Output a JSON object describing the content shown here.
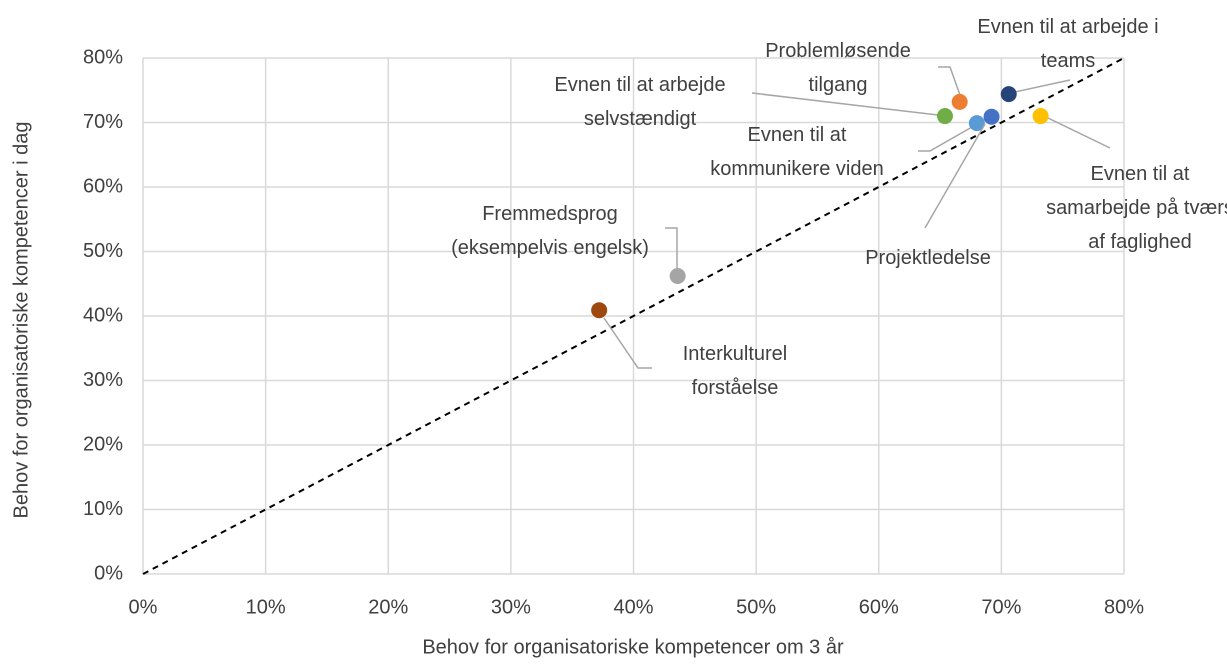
{
  "chart_data": {
    "type": "scatter",
    "xlabel": "Behov for organisatoriske kompetencer om 3 år",
    "ylabel": "Behov for organisatoriske kompetencer i dag",
    "xlim": [
      0,
      80
    ],
    "ylim": [
      0,
      80
    ],
    "xticks": [
      {
        "value": 0,
        "label": "0%"
      },
      {
        "value": 10,
        "label": "10%"
      },
      {
        "value": 20,
        "label": "20%"
      },
      {
        "value": 30,
        "label": "30%"
      },
      {
        "value": 40,
        "label": "40%"
      },
      {
        "value": 50,
        "label": "50%"
      },
      {
        "value": 60,
        "label": "60%"
      },
      {
        "value": 70,
        "label": "70%"
      },
      {
        "value": 80,
        "label": "80%"
      }
    ],
    "yticks": [
      {
        "value": 0,
        "label": "0%"
      },
      {
        "value": 10,
        "label": "10%"
      },
      {
        "value": 20,
        "label": "20%"
      },
      {
        "value": 30,
        "label": "30%"
      },
      {
        "value": 40,
        "label": "40%"
      },
      {
        "value": 50,
        "label": "50%"
      },
      {
        "value": 60,
        "label": "60%"
      },
      {
        "value": 70,
        "label": "70%"
      },
      {
        "value": 80,
        "label": "80%"
      }
    ],
    "grid": true,
    "reference_line": {
      "x": [
        0,
        80
      ],
      "y": [
        0,
        80
      ],
      "style": "dashed"
    },
    "series": [
      {
        "name": "Problemløsende\ntilgang",
        "color": "#ed7d31",
        "x": [
          66.6
        ],
        "values": [
          73.2
        ]
      },
      {
        "name": "Evnen til at arbejde i\nteams",
        "color": "#264478",
        "x": [
          70.6
        ],
        "values": [
          74.4
        ]
      },
      {
        "name": "Evnen til at arbejde\nselvstændigt",
        "color": "#70ad47",
        "x": [
          65.4
        ],
        "values": [
          71.0
        ]
      },
      {
        "name": "Evnen til at\nkommunikere viden",
        "color": "#5b9bd5",
        "x": [
          68.0
        ],
        "values": [
          69.9
        ]
      },
      {
        "name": "Projektledelse",
        "color": "#4472c4",
        "x": [
          69.2
        ],
        "values": [
          70.9
        ]
      },
      {
        "name": "Evnen til at\nsamarbejde på tværs\naf faglighed",
        "color": "#ffc000",
        "x": [
          73.2
        ],
        "values": [
          71.0
        ]
      },
      {
        "name": "Fremmedsprog\n(eksempelvis engelsk)",
        "color": "#a5a5a5",
        "x": [
          43.6
        ],
        "values": [
          46.2
        ]
      },
      {
        "name": "Interkulturel\nforståelse",
        "color": "#9e480e",
        "x": [
          37.2
        ],
        "values": [
          40.9
        ]
      }
    ]
  }
}
